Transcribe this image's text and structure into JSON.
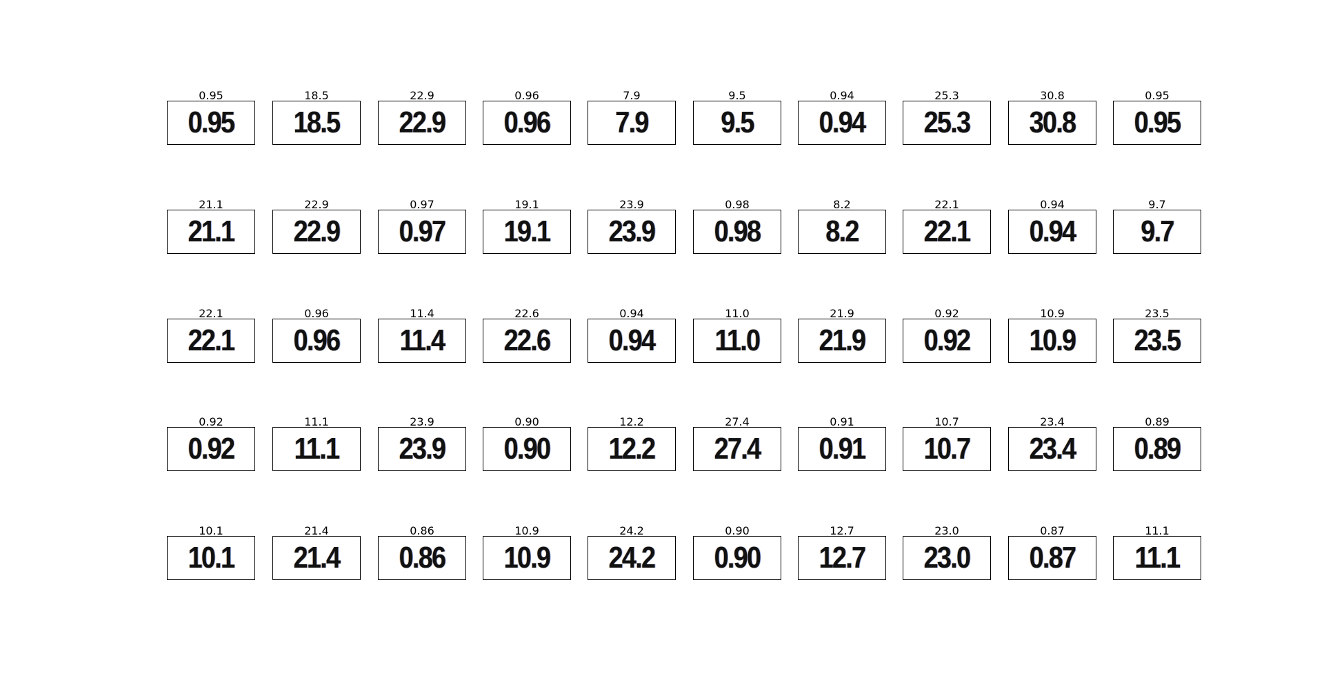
{
  "tiles": [
    {
      "title": "0.95",
      "value": "0.95"
    },
    {
      "title": "18.5",
      "value": "18.5"
    },
    {
      "title": "22.9",
      "value": "22.9"
    },
    {
      "title": "0.96",
      "value": "0.96"
    },
    {
      "title": "7.9",
      "value": "7.9"
    },
    {
      "title": "9.5",
      "value": "9.5"
    },
    {
      "title": "0.94",
      "value": "0.94"
    },
    {
      "title": "25.3",
      "value": "25.3"
    },
    {
      "title": "30.8",
      "value": "30.8"
    },
    {
      "title": "0.95",
      "value": "0.95"
    },
    {
      "title": "21.1",
      "value": "21.1"
    },
    {
      "title": "22.9",
      "value": "22.9"
    },
    {
      "title": "0.97",
      "value": "0.97"
    },
    {
      "title": "19.1",
      "value": "19.1"
    },
    {
      "title": "23.9",
      "value": "23.9"
    },
    {
      "title": "0.98",
      "value": "0.98"
    },
    {
      "title": "8.2",
      "value": "8.2"
    },
    {
      "title": "22.1",
      "value": "22.1"
    },
    {
      "title": "0.94",
      "value": "0.94"
    },
    {
      "title": "9.7",
      "value": "9.7"
    },
    {
      "title": "22.1",
      "value": "22.1"
    },
    {
      "title": "0.96",
      "value": "0.96"
    },
    {
      "title": "11.4",
      "value": "11.4"
    },
    {
      "title": "22.6",
      "value": "22.6"
    },
    {
      "title": "0.94",
      "value": "0.94"
    },
    {
      "title": "11.0",
      "value": "11.0"
    },
    {
      "title": "21.9",
      "value": "21.9"
    },
    {
      "title": "0.92",
      "value": "0.92"
    },
    {
      "title": "10.9",
      "value": "10.9"
    },
    {
      "title": "23.5",
      "value": "23.5"
    },
    {
      "title": "0.92",
      "value": "0.92"
    },
    {
      "title": "11.1",
      "value": "11.1"
    },
    {
      "title": "23.9",
      "value": "23.9"
    },
    {
      "title": "0.90",
      "value": "0.90"
    },
    {
      "title": "12.2",
      "value": "12.2"
    },
    {
      "title": "27.4",
      "value": "27.4"
    },
    {
      "title": "0.91",
      "value": "0.91"
    },
    {
      "title": "10.7",
      "value": "10.7"
    },
    {
      "title": "23.4",
      "value": "23.4"
    },
    {
      "title": "0.89",
      "value": "0.89"
    },
    {
      "title": "10.1",
      "value": "10.1"
    },
    {
      "title": "21.4",
      "value": "21.4"
    },
    {
      "title": "0.86",
      "value": "0.86"
    },
    {
      "title": "10.9",
      "value": "10.9"
    },
    {
      "title": "24.2",
      "value": "24.2"
    },
    {
      "title": "0.90",
      "value": "0.90"
    },
    {
      "title": "12.7",
      "value": "12.7"
    },
    {
      "title": "23.0",
      "value": "23.0"
    },
    {
      "title": "0.87",
      "value": "0.87"
    },
    {
      "title": "11.1",
      "value": "11.1"
    }
  ]
}
